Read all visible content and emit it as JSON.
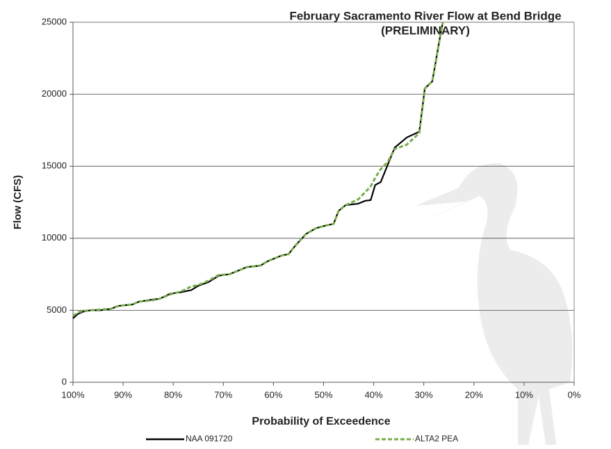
{
  "chart_data": {
    "type": "line",
    "title": [
      "February Sacramento River Flow at Bend Bridge",
      "(PRELIMINARY)"
    ],
    "xlabel": "Probability of Exceedence",
    "ylabel": "Flow (CFS)",
    "x": [
      100,
      99,
      98,
      96.5,
      94.5,
      92.4,
      91,
      88.2,
      86.8,
      84,
      82.7,
      80.6,
      78.5,
      76.4,
      75,
      73,
      70.9,
      68.8,
      67.4,
      65.3,
      62.6,
      61.2,
      59.8,
      58.4,
      57,
      55.6,
      53.5,
      51.5,
      49.4,
      48,
      47,
      45.6,
      43.1,
      41.7,
      40.6,
      39.7,
      38.6,
      37.2,
      35.8,
      33.4,
      30.9,
      29.8,
      28.3,
      26.8,
      26.2
    ],
    "series": [
      {
        "name": "NAA 091720",
        "color": "#000000",
        "dash": false,
        "values": [
          4440,
          4750,
          4900,
          5000,
          5000,
          5100,
          5300,
          5400,
          5600,
          5750,
          5800,
          6150,
          6250,
          6400,
          6700,
          6950,
          7400,
          7500,
          7700,
          8000,
          8100,
          8400,
          8600,
          8800,
          8900,
          9500,
          10300,
          10700,
          10900,
          11000,
          11900,
          12300,
          12400,
          12600,
          12650,
          13700,
          13900,
          15100,
          16300,
          17000,
          17400,
          20400,
          20900,
          23900,
          25000
        ]
      },
      {
        "name": "ALTA2 PEA",
        "color": "#77ac4a",
        "dash": true,
        "values": [
          4600,
          4850,
          4950,
          5000,
          5050,
          5100,
          5300,
          5400,
          5600,
          5700,
          5800,
          6100,
          6300,
          6650,
          6750,
          7050,
          7450,
          7500,
          7700,
          8000,
          8100,
          8400,
          8600,
          8800,
          8900,
          9500,
          10300,
          10700,
          10900,
          11000,
          11900,
          12300,
          12700,
          13200,
          13600,
          14200,
          14800,
          15300,
          16200,
          16500,
          17300,
          20400,
          20900,
          23900,
          25000
        ]
      }
    ],
    "xlim": [
      100,
      0
    ],
    "xticks": [
      {
        "value": 100,
        "label": "100%"
      },
      {
        "value": 90,
        "label": "90%"
      },
      {
        "value": 80,
        "label": "80%"
      },
      {
        "value": 70,
        "label": "70%"
      },
      {
        "value": 60,
        "label": "60%"
      },
      {
        "value": 50,
        "label": "50%"
      },
      {
        "value": 40,
        "label": "40%"
      },
      {
        "value": 30,
        "label": "30%"
      },
      {
        "value": 20,
        "label": "20%"
      },
      {
        "value": 10,
        "label": "10%"
      },
      {
        "value": 0,
        "label": "0%"
      }
    ],
    "ylim": [
      0,
      25000
    ],
    "yticks": [
      0,
      5000,
      10000,
      15000,
      20000,
      25000
    ],
    "grid": true,
    "legend": "bottom"
  }
}
